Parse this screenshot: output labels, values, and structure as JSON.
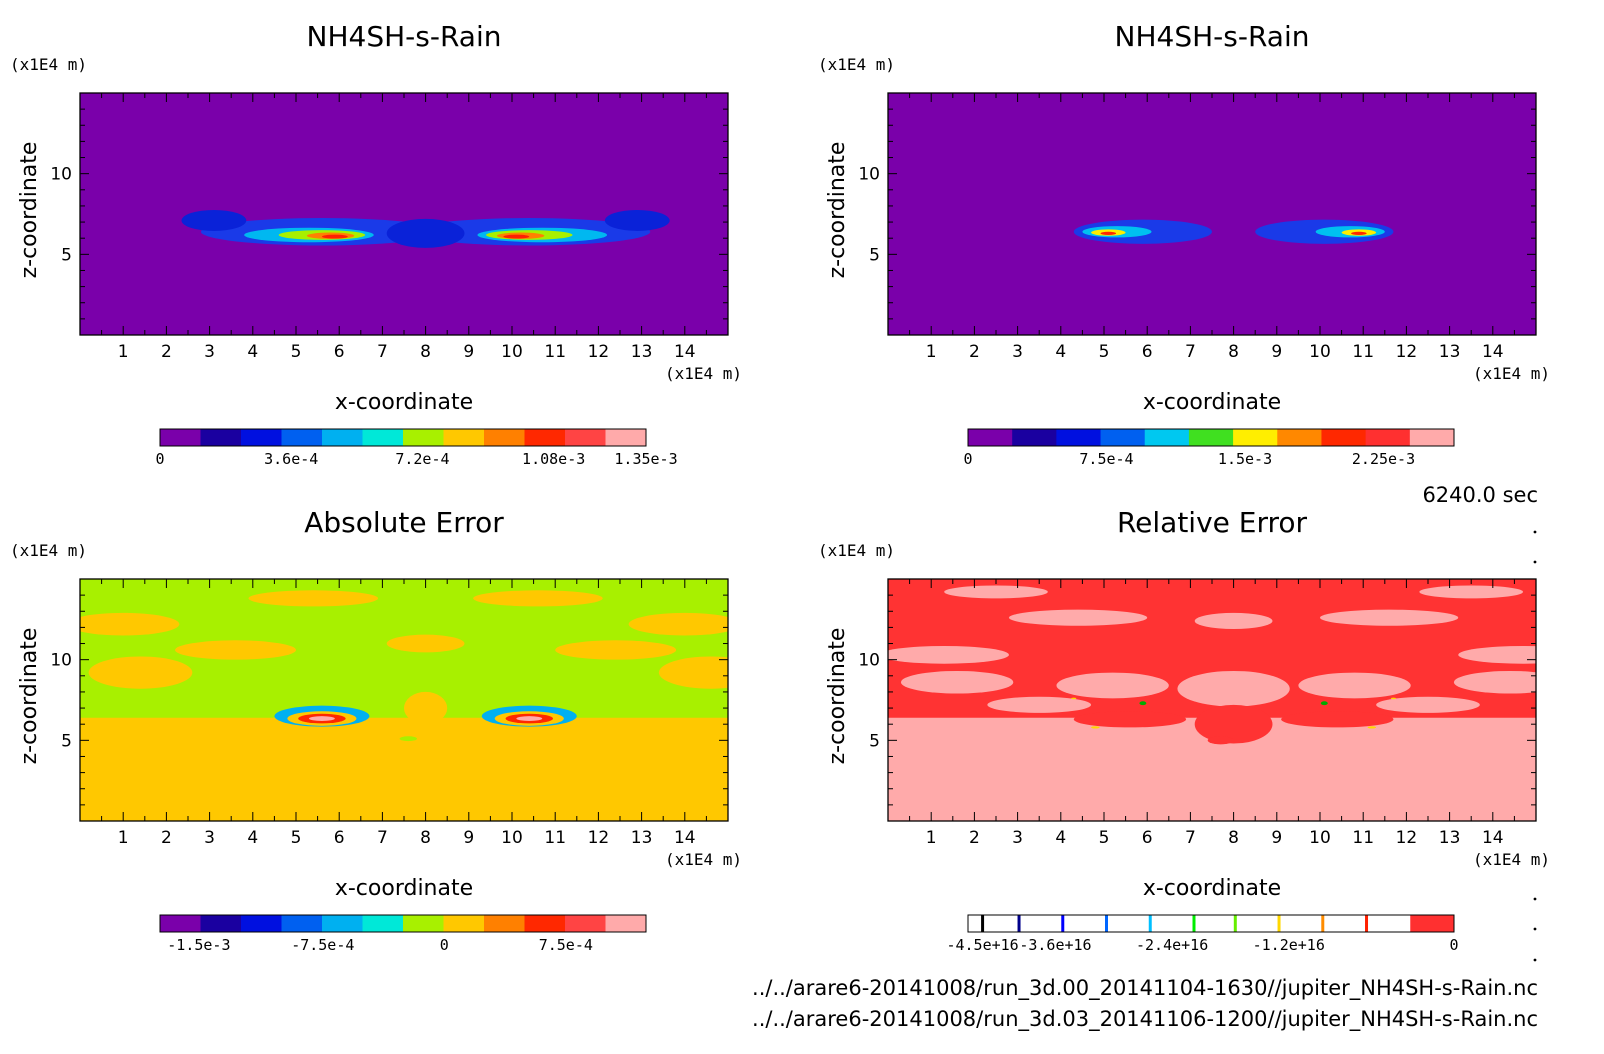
{
  "figure": {
    "time_label": "6240.0 sec",
    "file_lines": [
      "../../arare6-20141008/run_3d.00_20141104-1630//jupiter_NH4SH-s-Rain.nc",
      "../../arare6-20141008/run_3d.03_20141106-1200//jupiter_NH4SH-s-Rain.nc"
    ]
  },
  "chart_data": [
    {
      "type": "heatmap",
      "title": "NH4SH-s-Rain",
      "xlabel": "x-coordinate",
      "ylabel": "z-coordinate",
      "x_unit": "(x1E4 m)",
      "y_unit": "(x1E4 m)",
      "xlim": [
        0,
        15
      ],
      "ylim": [
        0,
        15
      ],
      "x_ticks": [
        "1",
        "2",
        "3",
        "4",
        "5",
        "6",
        "7",
        "8",
        "9",
        "10",
        "11",
        "12",
        "13",
        "14"
      ],
      "y_ticks": [
        "5",
        "10"
      ],
      "background_color": "#7a00aa",
      "colorbar": {
        "colors": [
          "#7a00aa",
          "#1a00a0",
          "#0010e0",
          "#0060f0",
          "#00b0f0",
          "#00e8d8",
          "#a8f000",
          "#ffc800",
          "#ff8000",
          "#ff2800",
          "#ff4444",
          "#ffaaaa"
        ],
        "labels": [
          "0",
          "3.6e-4",
          "7.2e-4",
          "1.08e-3",
          "1.35e-3"
        ],
        "label_positions": [
          0,
          0.27,
          0.54,
          0.81,
          1.0
        ]
      },
      "blobs": [
        {
          "x": 5.6,
          "z": 6.4,
          "rx": 2.8,
          "rz": 0.85,
          "c": "#1a3ae8"
        },
        {
          "x": 10.4,
          "z": 6.4,
          "rx": 2.8,
          "rz": 0.85,
          "c": "#1a3ae8"
        },
        {
          "x": 3.1,
          "z": 7.1,
          "rx": 0.75,
          "rz": 0.65,
          "c": "#0a22d8"
        },
        {
          "x": 12.9,
          "z": 7.1,
          "rx": 0.75,
          "rz": 0.65,
          "c": "#0a22d8"
        },
        {
          "x": 8.0,
          "z": 6.3,
          "rx": 0.9,
          "rz": 0.9,
          "c": "#0a22d8"
        },
        {
          "x": 5.3,
          "z": 6.2,
          "rx": 1.5,
          "rz": 0.45,
          "c": "#00b8f0"
        },
        {
          "x": 10.7,
          "z": 6.2,
          "rx": 1.5,
          "rz": 0.45,
          "c": "#00b8f0"
        },
        {
          "x": 5.6,
          "z": 6.2,
          "rx": 1.0,
          "rz": 0.3,
          "c": "#a8f000"
        },
        {
          "x": 10.4,
          "z": 6.2,
          "rx": 1.0,
          "rz": 0.3,
          "c": "#a8f000"
        },
        {
          "x": 5.8,
          "z": 6.15,
          "rx": 0.55,
          "rz": 0.2,
          "c": "#ff8000"
        },
        {
          "x": 10.2,
          "z": 6.15,
          "rx": 0.55,
          "rz": 0.2,
          "c": "#ff8000"
        },
        {
          "x": 5.9,
          "z": 6.1,
          "rx": 0.3,
          "rz": 0.12,
          "c": "#ff2000"
        },
        {
          "x": 10.1,
          "z": 6.1,
          "rx": 0.3,
          "rz": 0.12,
          "c": "#ff2000"
        }
      ]
    },
    {
      "type": "heatmap",
      "title": "NH4SH-s-Rain",
      "xlabel": "x-coordinate",
      "ylabel": "z-coordinate",
      "x_unit": "(x1E4 m)",
      "y_unit": "(x1E4 m)",
      "xlim": [
        0,
        15
      ],
      "ylim": [
        0,
        15
      ],
      "x_ticks": [
        "1",
        "2",
        "3",
        "4",
        "5",
        "6",
        "7",
        "8",
        "9",
        "10",
        "11",
        "12",
        "13",
        "14"
      ],
      "y_ticks": [
        "5",
        "10"
      ],
      "background_color": "#7a00aa",
      "colorbar": {
        "colors": [
          "#7a00aa",
          "#1a00a0",
          "#0010e0",
          "#0060f0",
          "#00c8f0",
          "#40e020",
          "#ffee00",
          "#ff8800",
          "#ff2800",
          "#ff3030",
          "#ffaaaa"
        ],
        "labels": [
          "0",
          "7.5e-4",
          "1.5e-3",
          "2.25e-3"
        ],
        "label_positions": [
          0,
          0.285,
          0.57,
          0.855
        ]
      },
      "blobs": [
        {
          "x": 5.9,
          "z": 6.4,
          "rx": 1.6,
          "rz": 0.75,
          "c": "#1a3ae8"
        },
        {
          "x": 10.1,
          "z": 6.4,
          "rx": 1.6,
          "rz": 0.75,
          "c": "#1a3ae8"
        },
        {
          "x": 5.3,
          "z": 6.4,
          "rx": 0.8,
          "rz": 0.35,
          "c": "#00c0f0"
        },
        {
          "x": 10.7,
          "z": 6.4,
          "rx": 0.8,
          "rz": 0.35,
          "c": "#00c0f0"
        },
        {
          "x": 5.1,
          "z": 6.35,
          "rx": 0.4,
          "rz": 0.2,
          "c": "#ffee00"
        },
        {
          "x": 10.9,
          "z": 6.35,
          "rx": 0.4,
          "rz": 0.2,
          "c": "#ffee00"
        },
        {
          "x": 5.1,
          "z": 6.3,
          "rx": 0.18,
          "rz": 0.1,
          "c": "#ff2800"
        },
        {
          "x": 10.9,
          "z": 6.3,
          "rx": 0.18,
          "rz": 0.1,
          "c": "#ff2800"
        }
      ]
    },
    {
      "type": "heatmap",
      "title": "Absolute Error",
      "xlabel": "x-coordinate",
      "ylabel": "z-coordinate",
      "x_unit": "(x1E4 m)",
      "y_unit": "(x1E4 m)",
      "xlim": [
        0,
        15
      ],
      "ylim": [
        0,
        15
      ],
      "x_ticks": [
        "1",
        "2",
        "3",
        "4",
        "5",
        "6",
        "7",
        "8",
        "9",
        "10",
        "11",
        "12",
        "13",
        "14"
      ],
      "y_ticks": [
        "5",
        "10"
      ],
      "background_color": "#ffc800",
      "colorbar": {
        "colors": [
          "#7a00aa",
          "#1a00a0",
          "#0010e0",
          "#0060f0",
          "#00b0f0",
          "#00e8d8",
          "#a8f000",
          "#ffc800",
          "#ff8000",
          "#ff2800",
          "#ff4444",
          "#ffaaaa"
        ],
        "labels": [
          "-1.5e-3",
          "-7.5e-4",
          "0",
          "7.5e-4"
        ],
        "label_positions": [
          0.08,
          0.335,
          0.585,
          0.835
        ]
      },
      "bands": [
        {
          "z0": 6.4,
          "z1": 15,
          "c": "#a8f000"
        }
      ],
      "blobs": [
        {
          "x": 1.0,
          "z": 12.2,
          "rx": 1.3,
          "rz": 0.7,
          "c": "#ffc800"
        },
        {
          "x": 14.0,
          "z": 12.2,
          "rx": 1.3,
          "rz": 0.7,
          "c": "#ffc800"
        },
        {
          "x": 1.4,
          "z": 9.2,
          "rx": 1.2,
          "rz": 1.0,
          "c": "#ffc800"
        },
        {
          "x": 14.6,
          "z": 9.2,
          "rx": 1.2,
          "rz": 1.0,
          "c": "#ffc800"
        },
        {
          "x": 3.6,
          "z": 10.6,
          "rx": 1.4,
          "rz": 0.6,
          "c": "#ffc800"
        },
        {
          "x": 12.4,
          "z": 10.6,
          "rx": 1.4,
          "rz": 0.6,
          "c": "#ffc800"
        },
        {
          "x": 8.0,
          "z": 7.0,
          "rx": 0.5,
          "rz": 1.0,
          "c": "#ffc800"
        },
        {
          "x": 5.4,
          "z": 13.8,
          "rx": 1.5,
          "rz": 0.5,
          "c": "#ffc800"
        },
        {
          "x": 10.6,
          "z": 13.8,
          "rx": 1.5,
          "rz": 0.5,
          "c": "#ffc800"
        },
        {
          "x": 8.0,
          "z": 11.0,
          "rx": 0.9,
          "rz": 0.55,
          "c": "#ffc800"
        },
        {
          "x": 5.6,
          "z": 6.5,
          "rx": 1.1,
          "rz": 0.65,
          "c": "#00b0f0"
        },
        {
          "x": 10.4,
          "z": 6.5,
          "rx": 1.1,
          "rz": 0.65,
          "c": "#00b0f0"
        },
        {
          "x": 5.6,
          "z": 6.35,
          "rx": 0.8,
          "rz": 0.45,
          "c": "#ffc800"
        },
        {
          "x": 10.4,
          "z": 6.35,
          "rx": 0.8,
          "rz": 0.45,
          "c": "#ffc800"
        },
        {
          "x": 5.6,
          "z": 6.35,
          "rx": 0.55,
          "rz": 0.3,
          "c": "#ff2800"
        },
        {
          "x": 10.4,
          "z": 6.35,
          "rx": 0.55,
          "rz": 0.3,
          "c": "#ff2800"
        },
        {
          "x": 5.6,
          "z": 6.35,
          "rx": 0.3,
          "rz": 0.15,
          "c": "#ffaaaa"
        },
        {
          "x": 10.4,
          "z": 6.35,
          "rx": 0.3,
          "rz": 0.15,
          "c": "#ffaaaa"
        },
        {
          "x": 7.6,
          "z": 5.1,
          "rx": 0.2,
          "rz": 0.15,
          "c": "#a8f000"
        }
      ]
    },
    {
      "type": "heatmap",
      "title": "Relative Error",
      "xlabel": "x-coordinate",
      "ylabel": "z-coordinate",
      "x_unit": "(x1E4 m)",
      "y_unit": "(x1E4 m)",
      "xlim": [
        0,
        15
      ],
      "ylim": [
        0,
        15
      ],
      "x_ticks": [
        "1",
        "2",
        "3",
        "4",
        "5",
        "6",
        "7",
        "8",
        "9",
        "10",
        "11",
        "12",
        "13",
        "14"
      ],
      "y_ticks": [
        "5",
        "10"
      ],
      "background_color": "#ffaaaa",
      "colorbar": {
        "type": "lines",
        "line_colors": [
          "#000000",
          "#00008b",
          "#0000ff",
          "#0066ff",
          "#00bfff",
          "#00ee00",
          "#66ee00",
          "#ffd700",
          "#ff8c00",
          "#ff2000"
        ],
        "line_positions": [
          0.03,
          0.105,
          0.195,
          0.285,
          0.375,
          0.465,
          0.55,
          0.64,
          0.73,
          0.82
        ],
        "fill_color": "#ff3030",
        "fill_from": 0.91,
        "labels": [
          "-4.5e+16",
          "-3.6e+16",
          "-2.4e+16",
          "-1.2e+16",
          "0"
        ],
        "label_positions": [
          0.03,
          0.18,
          0.42,
          0.66,
          1.0
        ]
      },
      "bands": [
        {
          "z0": 6.4,
          "z1": 15,
          "c": "#ff3333"
        }
      ],
      "blobs": [
        {
          "x": 1.3,
          "z": 10.3,
          "rx": 1.5,
          "rz": 0.55,
          "c": "#ffaaaa"
        },
        {
          "x": 14.7,
          "z": 10.3,
          "rx": 1.5,
          "rz": 0.55,
          "c": "#ffaaaa"
        },
        {
          "x": 1.6,
          "z": 8.6,
          "rx": 1.3,
          "rz": 0.7,
          "c": "#ffaaaa"
        },
        {
          "x": 14.4,
          "z": 8.6,
          "rx": 1.3,
          "rz": 0.7,
          "c": "#ffaaaa"
        },
        {
          "x": 8.0,
          "z": 8.2,
          "rx": 1.3,
          "rz": 1.1,
          "c": "#ffaaaa"
        },
        {
          "x": 5.2,
          "z": 8.4,
          "rx": 1.3,
          "rz": 0.8,
          "c": "#ffaaaa"
        },
        {
          "x": 10.8,
          "z": 8.4,
          "rx": 1.3,
          "rz": 0.8,
          "c": "#ffaaaa"
        },
        {
          "x": 4.4,
          "z": 12.6,
          "rx": 1.6,
          "rz": 0.5,
          "c": "#ffaaaa"
        },
        {
          "x": 11.6,
          "z": 12.6,
          "rx": 1.6,
          "rz": 0.5,
          "c": "#ffaaaa"
        },
        {
          "x": 8.0,
          "z": 12.4,
          "rx": 0.9,
          "rz": 0.5,
          "c": "#ffaaaa"
        },
        {
          "x": 2.5,
          "z": 14.2,
          "rx": 1.2,
          "rz": 0.4,
          "c": "#ffaaaa"
        },
        {
          "x": 13.5,
          "z": 14.2,
          "rx": 1.2,
          "rz": 0.4,
          "c": "#ffaaaa"
        },
        {
          "x": 3.5,
          "z": 7.2,
          "rx": 1.2,
          "rz": 0.5,
          "c": "#ffaaaa"
        },
        {
          "x": 12.5,
          "z": 7.2,
          "rx": 1.2,
          "rz": 0.5,
          "c": "#ffaaaa"
        },
        {
          "x": 5.6,
          "z": 6.3,
          "rx": 1.3,
          "rz": 0.5,
          "c": "#ff3333"
        },
        {
          "x": 10.4,
          "z": 6.3,
          "rx": 1.3,
          "rz": 0.5,
          "c": "#ff3333"
        },
        {
          "x": 8.0,
          "z": 6.0,
          "rx": 0.9,
          "rz": 1.2,
          "c": "#ff3333"
        },
        {
          "x": 7.7,
          "z": 5.0,
          "rx": 0.3,
          "rz": 0.25,
          "c": "#ff3333"
        },
        {
          "x": 5.9,
          "z": 7.3,
          "rx": 0.08,
          "rz": 0.12,
          "c": "#00aa00"
        },
        {
          "x": 10.1,
          "z": 7.3,
          "rx": 0.08,
          "rz": 0.12,
          "c": "#00aa00"
        },
        {
          "x": 4.8,
          "z": 5.8,
          "rx": 0.1,
          "rz": 0.07,
          "c": "#ffd700"
        },
        {
          "x": 11.2,
          "z": 5.8,
          "rx": 0.1,
          "rz": 0.07,
          "c": "#ffd700"
        },
        {
          "x": 4.3,
          "z": 7.6,
          "rx": 0.06,
          "rz": 0.05,
          "c": "#ffd700"
        },
        {
          "x": 11.7,
          "z": 7.6,
          "rx": 0.06,
          "rz": 0.05,
          "c": "#ffd700"
        }
      ]
    }
  ]
}
